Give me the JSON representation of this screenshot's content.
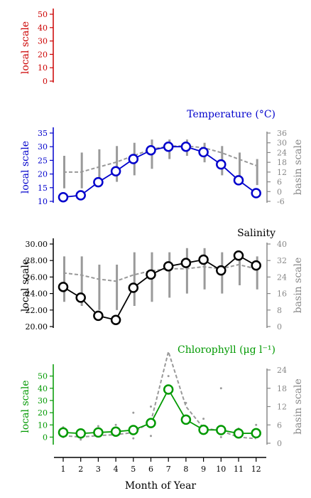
{
  "chart_data": [
    {
      "id": "p0",
      "type": "line",
      "title": "",
      "color": "#cc0000",
      "ylabel_left": "local scale",
      "ylim_left": [
        0,
        50
      ],
      "yticks_left": [
        "0",
        "10",
        "20",
        "30",
        "40",
        "50"
      ],
      "series": []
    },
    {
      "id": "p1",
      "type": "line",
      "title": "Temperature (°C)",
      "color": "#0000cc",
      "ylabel_left": "local scale",
      "ylabel_right": "basin scale",
      "ylim_left": [
        10,
        35
      ],
      "yticks_left": [
        "10",
        "15",
        "20",
        "25",
        "30",
        "35"
      ],
      "ylim_right": [
        -6,
        36
      ],
      "yticks_right": [
        "-6",
        "0",
        "6",
        "12",
        "18",
        "24",
        "30",
        "36"
      ],
      "series": [
        {
          "axis": "left",
          "style": "local-mean",
          "x": [
            1,
            2,
            3,
            4,
            5,
            6,
            7,
            8,
            9,
            10,
            11,
            12
          ],
          "y": [
            11.5,
            12.2,
            17.0,
            21.0,
            25.5,
            28.7,
            30.0,
            30.0,
            28.0,
            23.5,
            17.7,
            13.0
          ]
        },
        {
          "axis": "right",
          "style": "basin-mean",
          "x": [
            1,
            2,
            3,
            4,
            5,
            6,
            7,
            8,
            9,
            10,
            11,
            12
          ],
          "y": [
            12,
            12,
            15,
            18,
            22,
            26,
            28,
            28,
            27,
            24,
            20,
            16
          ]
        }
      ],
      "ranges": {
        "axis": "right",
        "x": [
          1,
          2,
          3,
          4,
          5,
          6,
          7,
          8,
          9,
          10,
          11,
          12
        ],
        "low": [
          2,
          2,
          4,
          6,
          10,
          14,
          20,
          22,
          18,
          10,
          6,
          4
        ],
        "high": [
          22,
          24,
          26,
          28,
          30,
          32,
          32,
          32,
          30,
          28,
          24,
          20
        ]
      }
    },
    {
      "id": "p2",
      "type": "line",
      "title": "Salinity",
      "color": "#000000",
      "ylabel_left": "local scale",
      "ylabel_right": "basin scale",
      "ylim_left": [
        20,
        30
      ],
      "yticks_left": [
        "20.00",
        "22.00",
        "24.00",
        "26.00",
        "28.00",
        "30.00"
      ],
      "ylim_right": [
        0,
        40
      ],
      "yticks_right": [
        "0",
        "8",
        "16",
        "24",
        "32",
        "40"
      ],
      "series": [
        {
          "axis": "left",
          "style": "local-mean",
          "x": [
            1,
            2,
            3,
            4,
            5,
            6,
            7,
            8,
            9,
            10,
            11,
            12
          ],
          "y": [
            24.8,
            23.5,
            21.3,
            20.8,
            24.7,
            26.3,
            27.3,
            27.7,
            28.1,
            26.8,
            28.6,
            27.4
          ]
        },
        {
          "axis": "right",
          "style": "basin-mean",
          "x": [
            1,
            2,
            3,
            4,
            5,
            6,
            7,
            8,
            9,
            10,
            11,
            12
          ],
          "y": [
            26,
            25,
            23,
            22,
            25,
            27,
            28,
            28,
            29,
            28,
            30,
            28
          ]
        }
      ],
      "ranges": {
        "axis": "right",
        "x": [
          1,
          2,
          3,
          4,
          5,
          6,
          7,
          8,
          9,
          10,
          11,
          12
        ],
        "low": [
          12,
          10,
          8,
          8,
          10,
          12,
          14,
          16,
          18,
          16,
          20,
          18
        ],
        "high": [
          34,
          34,
          30,
          30,
          36,
          36,
          36,
          38,
          38,
          36,
          36,
          34
        ]
      }
    },
    {
      "id": "p3",
      "type": "line",
      "title": "Chlorophyll (μg l⁻¹)",
      "color": "#009900",
      "ylabel_left": "local scale",
      "ylabel_right": "basin scale",
      "ylim_left": [
        -5,
        55
      ],
      "yticks_left": [
        "0",
        "10",
        "20",
        "30",
        "40",
        "50"
      ],
      "ylim_right": [
        0,
        24
      ],
      "yticks_right": [
        "0",
        "6",
        "12",
        "18",
        "24"
      ],
      "series": [
        {
          "axis": "left",
          "style": "local-mean",
          "x": [
            1,
            2,
            3,
            4,
            5,
            6,
            7,
            8,
            9,
            10,
            11,
            12
          ],
          "y": [
            3.8,
            3.0,
            3.8,
            4.5,
            5.8,
            11.5,
            39.0,
            14.3,
            6.0,
            5.8,
            3.0,
            3.2
          ]
        },
        {
          "axis": "right",
          "style": "basin-mean",
          "x": [
            1,
            2,
            3,
            4,
            5,
            6,
            7,
            8,
            9,
            10,
            11,
            12
          ],
          "y": [
            2.5,
            2.0,
            2.5,
            2.8,
            3.5,
            7.0,
            30,
            12,
            5,
            4,
            2,
            1.5
          ]
        }
      ],
      "scatter": {
        "axis": "left",
        "x": [
          1,
          1,
          2,
          3,
          4,
          5,
          5,
          6,
          6,
          7,
          8,
          9,
          10,
          10,
          11,
          12
        ],
        "y": [
          8,
          0,
          -2,
          9,
          10,
          20,
          -1,
          25,
          1,
          50,
          28,
          15,
          40,
          0,
          7,
          10
        ]
      }
    }
  ],
  "xaxis": {
    "label": "Month of Year",
    "ticks": [
      "1",
      "2",
      "3",
      "4",
      "5",
      "6",
      "7",
      "8",
      "9",
      "10",
      "11",
      "12"
    ]
  }
}
